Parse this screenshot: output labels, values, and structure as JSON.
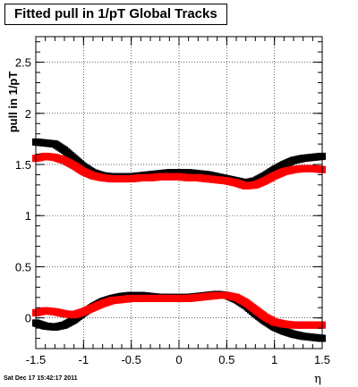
{
  "title": "Fitted pull in 1/pT  Global Tracks",
  "footer": "Sat Dec 17 15:42:17 2011",
  "chart_data": {
    "type": "scatter",
    "title": "Fitted pull in 1/pT  Global Tracks",
    "xlabel": "η",
    "ylabel": "pull in 1/pT",
    "xlim": [
      -1.5,
      1.5
    ],
    "ylim": [
      -0.3,
      2.75
    ],
    "xticks": [
      -1.5,
      -1,
      -0.5,
      0,
      0.5,
      1,
      1.5
    ],
    "xtick_labels": [
      "-1.5",
      "-1",
      "-0.5",
      "0",
      "0.5",
      "1",
      "1.5"
    ],
    "yticks": [
      0,
      0.5,
      1,
      1.5,
      2,
      2.5
    ],
    "ytick_labels": [
      "0",
      "0.5",
      "1",
      "1.5",
      "2",
      "2.5"
    ],
    "grid": true,
    "legend": "none",
    "x": [
      -1.5,
      -1.4,
      -1.3,
      -1.2,
      -1.1,
      -1.0,
      -0.9,
      -0.8,
      -0.7,
      -0.6,
      -0.5,
      -0.4,
      -0.3,
      -0.2,
      -0.1,
      0.0,
      0.1,
      0.2,
      0.3,
      0.4,
      0.5,
      0.6,
      0.7,
      0.8,
      0.9,
      1.0,
      1.1,
      1.2,
      1.3,
      1.4,
      1.5
    ],
    "series": [
      {
        "color": "#000000",
        "values": [
          1.72,
          1.71,
          1.7,
          1.64,
          1.56,
          1.48,
          1.42,
          1.39,
          1.38,
          1.38,
          1.38,
          1.39,
          1.4,
          1.41,
          1.42,
          1.42,
          1.42,
          1.41,
          1.4,
          1.38,
          1.36,
          1.34,
          1.32,
          1.34,
          1.39,
          1.45,
          1.5,
          1.54,
          1.56,
          1.57,
          1.58
        ]
      },
      {
        "color": "#ff0000",
        "values": [
          1.56,
          1.58,
          1.57,
          1.54,
          1.49,
          1.43,
          1.39,
          1.37,
          1.36,
          1.36,
          1.36,
          1.37,
          1.37,
          1.38,
          1.38,
          1.38,
          1.37,
          1.37,
          1.36,
          1.35,
          1.34,
          1.32,
          1.29,
          1.3,
          1.34,
          1.39,
          1.43,
          1.45,
          1.46,
          1.46,
          1.45
        ]
      },
      {
        "color": "#000000",
        "values": [
          -0.05,
          -0.08,
          -0.09,
          -0.07,
          -0.02,
          0.05,
          0.11,
          0.16,
          0.19,
          0.21,
          0.22,
          0.22,
          0.21,
          0.2,
          0.2,
          0.2,
          0.2,
          0.21,
          0.22,
          0.23,
          0.22,
          0.18,
          0.12,
          0.04,
          -0.03,
          -0.09,
          -0.13,
          -0.16,
          -0.18,
          -0.19,
          -0.2
        ]
      },
      {
        "color": "#ff0000",
        "values": [
          0.05,
          0.07,
          0.06,
          0.04,
          0.03,
          0.06,
          0.1,
          0.14,
          0.17,
          0.18,
          0.19,
          0.19,
          0.19,
          0.19,
          0.19,
          0.19,
          0.19,
          0.2,
          0.21,
          0.22,
          0.22,
          0.2,
          0.15,
          0.08,
          0.01,
          -0.04,
          -0.06,
          -0.07,
          -0.07,
          -0.07,
          -0.07
        ]
      }
    ]
  }
}
